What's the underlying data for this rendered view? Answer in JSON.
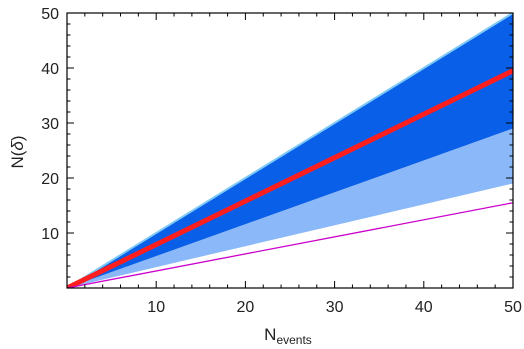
{
  "chart_data": {
    "type": "area",
    "xlabel": "N",
    "xlabel_subscript": "events",
    "ylabel": "N(",
    "ylabel_symbol": "δ",
    "ylabel_close": ")",
    "xlim": [
      0,
      50
    ],
    "ylim": [
      0,
      50
    ],
    "xticks": [
      10,
      20,
      30,
      40,
      50
    ],
    "yticks": [
      10,
      20,
      30,
      40,
      50
    ],
    "grid": false,
    "series": [
      {
        "kind": "band",
        "x": [
          0,
          50
        ],
        "lower": [
          0,
          19
        ],
        "upper": [
          0,
          29
        ],
        "color": "#8bb8f8"
      },
      {
        "kind": "band",
        "x": [
          0,
          50
        ],
        "lower": [
          0,
          29
        ],
        "upper": [
          0,
          50
        ],
        "color": "#0a5fe8"
      },
      {
        "kind": "line",
        "x": [
          0,
          50
        ],
        "y": [
          0,
          50
        ],
        "color": "#7ec9f5"
      },
      {
        "kind": "line",
        "x": [
          0,
          50
        ],
        "y": [
          0,
          39.5
        ],
        "color": "#ff1e1e"
      },
      {
        "kind": "line",
        "x": [
          0,
          50
        ],
        "y": [
          0,
          15.5
        ],
        "color": "#cc00cc"
      }
    ]
  }
}
